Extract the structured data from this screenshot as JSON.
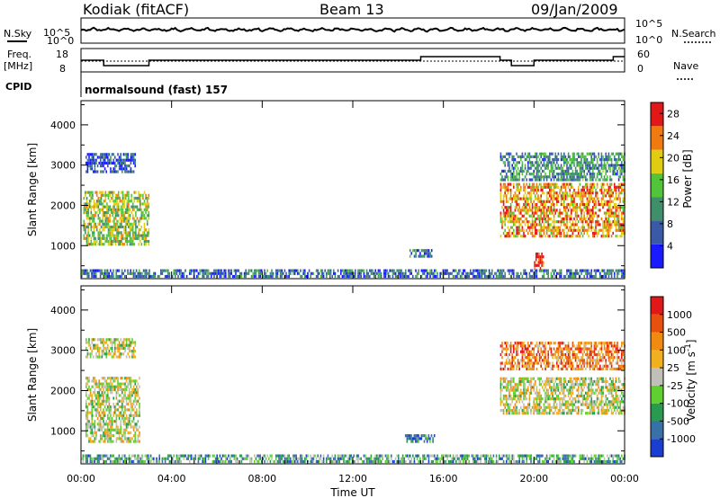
{
  "header": {
    "station": "Kodiak (fitACF)",
    "beam": "Beam 13",
    "date": "09/Jan/2009"
  },
  "strips": {
    "nsky_label": "N.Sky",
    "nsky_ticks": [
      "10^5",
      "10^0"
    ],
    "nsearch_label": "N.Search",
    "nsearch_ticks": [
      "10^5",
      "10^0"
    ],
    "freq_label": "Freq.",
    "freq_unit": "[MHz]",
    "freq_ticks": [
      "18",
      "8"
    ],
    "nave_label": "Nave",
    "nave_ticks": [
      "60",
      "0"
    ],
    "cpid_label": "CPID",
    "cpid_text": "normalsound (fast) 157"
  },
  "chart_data": [
    {
      "type": "heatmap",
      "name": "power",
      "ylabel": "Slant Range [km]",
      "xlabel": "Time UT",
      "xlim": [
        "00:00",
        "24:00"
      ],
      "ylim": [
        180,
        4600
      ],
      "x_ticks": [
        "00:00",
        "04:00",
        "08:00",
        "12:00",
        "16:00",
        "20:00",
        "00:00"
      ],
      "y_ticks": [
        1000,
        2000,
        3000,
        4000
      ],
      "colorbar": {
        "label": "Power [dB]",
        "ticks": [
          4,
          8,
          12,
          16,
          20,
          24,
          28
        ],
        "range": [
          0,
          30
        ],
        "colors": [
          "#1a1aff",
          "#3a5aa8",
          "#3f8f6a",
          "#52c43a",
          "#e0cc10",
          "#f07a10",
          "#e01818"
        ]
      },
      "regions": [
        {
          "t0": 0.0,
          "t1": 24.0,
          "r0": 200,
          "r1": 350,
          "level": 0.25
        },
        {
          "t0": 0.1,
          "t1": 3.0,
          "r0": 1000,
          "r1": 2300,
          "level": 0.55
        },
        {
          "t0": 0.2,
          "t1": 2.4,
          "r0": 2800,
          "r1": 3300,
          "level": 0.2
        },
        {
          "t0": 14.5,
          "t1": 15.5,
          "r0": 700,
          "r1": 850,
          "level": 0.3
        },
        {
          "t0": 18.5,
          "t1": 24.0,
          "r0": 1200,
          "r1": 2500,
          "level": 0.75
        },
        {
          "t0": 18.5,
          "t1": 24.0,
          "r0": 2600,
          "r1": 3300,
          "level": 0.35
        },
        {
          "t0": 20.0,
          "t1": 20.4,
          "r0": 400,
          "r1": 800,
          "level": 0.9
        }
      ]
    },
    {
      "type": "heatmap",
      "name": "velocity",
      "ylabel": "Slant Range [km]",
      "xlabel": "Time UT",
      "xlim": [
        "00:00",
        "24:00"
      ],
      "ylim": [
        180,
        4600
      ],
      "x_ticks": [
        "00:00",
        "04:00",
        "08:00",
        "12:00",
        "16:00",
        "20:00",
        "00:00"
      ],
      "y_ticks": [
        1000,
        2000,
        3000,
        4000
      ],
      "colorbar": {
        "label": "Velocity [m s^-1]",
        "ticks": [
          "1000",
          "500",
          "100",
          "25",
          "-25",
          "-100",
          "-500",
          "-1000"
        ],
        "colors": [
          "#1a3fd0",
          "#3a70a8",
          "#2a9a50",
          "#60d030",
          "#c0c0b8",
          "#f0b020",
          "#f08a10",
          "#e85010",
          "#e01818"
        ]
      },
      "regions": [
        {
          "t0": 0.0,
          "t1": 24.0,
          "r0": 200,
          "r1": 350,
          "level": 0.3
        },
        {
          "t0": 0.2,
          "t1": 2.6,
          "r0": 700,
          "r1": 2300,
          "level": 0.5
        },
        {
          "t0": 0.2,
          "t1": 2.4,
          "r0": 2800,
          "r1": 3300,
          "level": 0.5
        },
        {
          "t0": 14.3,
          "t1": 15.6,
          "r0": 700,
          "r1": 850,
          "level": 0.15
        },
        {
          "t0": 18.5,
          "t1": 24.0,
          "r0": 1400,
          "r1": 2300,
          "level": 0.5
        },
        {
          "t0": 18.5,
          "t1": 24.0,
          "r0": 2500,
          "r1": 3200,
          "level": 0.75
        }
      ]
    }
  ],
  "time_axis": {
    "ticks": [
      "00:00",
      "04:00",
      "08:00",
      "12:00",
      "16:00",
      "20:00",
      "00:00"
    ],
    "label": "Time UT"
  }
}
